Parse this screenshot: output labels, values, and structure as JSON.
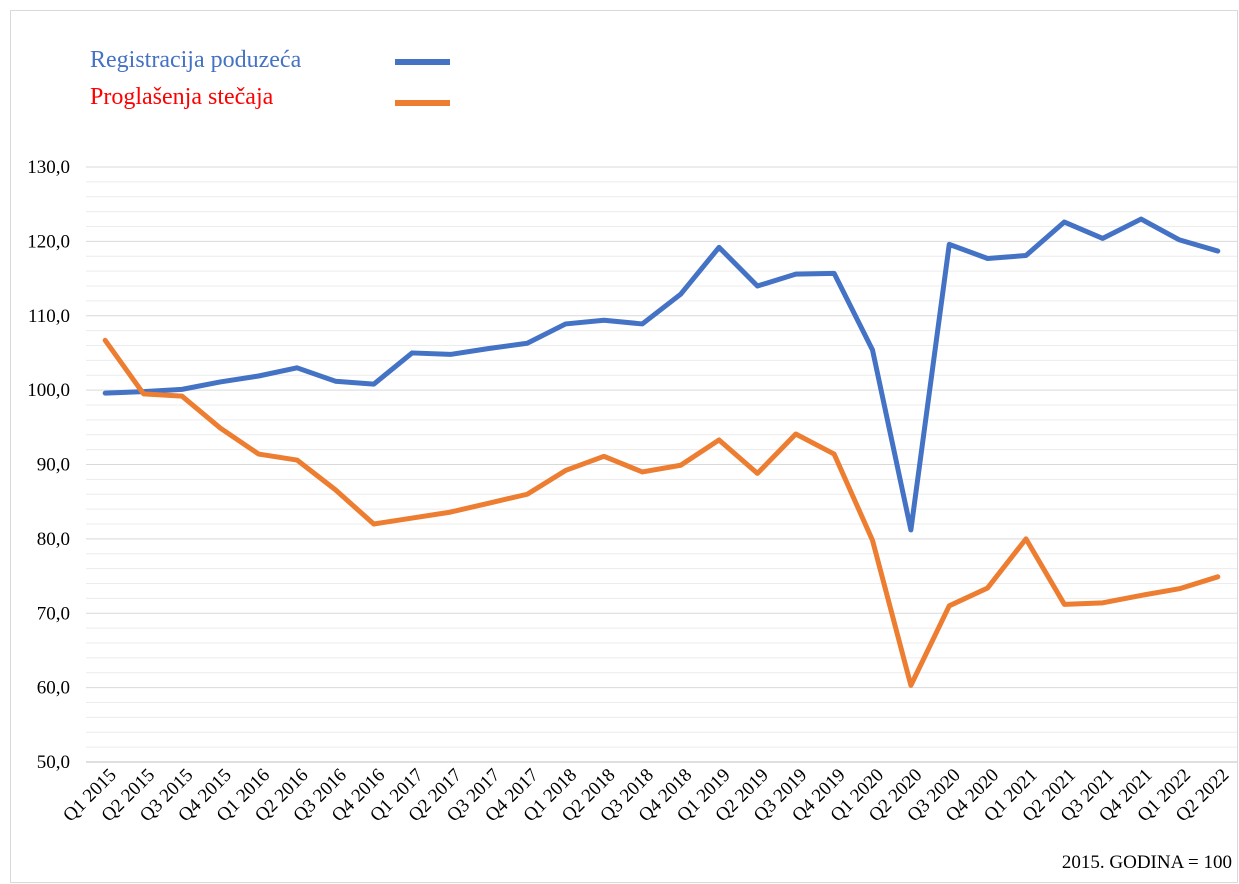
{
  "chart_data": {
    "type": "line",
    "categories": [
      "Q1 2015",
      "Q2 2015",
      "Q3 2015",
      "Q4 2015",
      "Q1 2016",
      "Q2 2016",
      "Q3 2016",
      "Q4 2016",
      "Q1 2017",
      "Q2 2017",
      "Q3 2017",
      "Q4 2017",
      "Q1 2018",
      "Q2 2018",
      "Q3 2018",
      "Q4 2018",
      "Q1 2019",
      "Q2 2019",
      "Q3 2019",
      "Q4 2019",
      "Q1 2020",
      "Q2 2020",
      "Q3 2020",
      "Q4 2020",
      "Q1 2021",
      "Q2 2021",
      "Q3 2021",
      "Q4 2021",
      "Q1 2022",
      "Q2 2022"
    ],
    "series": [
      {
        "name": "Registracija poduzeća",
        "color": "#4472c4",
        "legend_text_color": "#4472c4",
        "values": [
          99.6,
          99.8,
          100.1,
          101.1,
          101.9,
          103.0,
          101.2,
          100.8,
          105.0,
          104.8,
          105.6,
          106.3,
          108.9,
          109.4,
          108.9,
          112.9,
          119.2,
          114.0,
          115.6,
          115.7,
          105.4,
          81.2,
          119.6,
          117.7,
          118.1,
          122.6,
          120.4,
          123.0,
          120.2,
          118.7
        ]
      },
      {
        "name": "Proglašenja stečaja",
        "color": "#ed7d31",
        "legend_text_color": "#ff0000",
        "values": [
          106.7,
          99.5,
          99.2,
          94.9,
          91.4,
          90.6,
          86.6,
          82.0,
          82.8,
          83.6,
          84.8,
          86.0,
          89.2,
          91.1,
          89.0,
          89.9,
          93.3,
          88.8,
          94.1,
          91.4,
          79.8,
          60.3,
          71.0,
          73.4,
          80.0,
          71.2,
          71.4,
          72.4,
          73.3,
          74.9
        ]
      }
    ],
    "ylim": [
      50,
      130
    ],
    "yticks": [
      {
        "value": 50,
        "label": "50,0"
      },
      {
        "value": 60,
        "label": "60,0"
      },
      {
        "value": 70,
        "label": "70,0"
      },
      {
        "value": 80,
        "label": "80,0"
      },
      {
        "value": 90,
        "label": "90,0"
      },
      {
        "value": 100,
        "label": "100,0"
      },
      {
        "value": 110,
        "label": "110,0"
      },
      {
        "value": 120,
        "label": "120,0"
      },
      {
        "value": 130,
        "label": "130,0"
      }
    ],
    "grid": true,
    "minor_grid": true,
    "note": "2015. GODINA = 100"
  }
}
